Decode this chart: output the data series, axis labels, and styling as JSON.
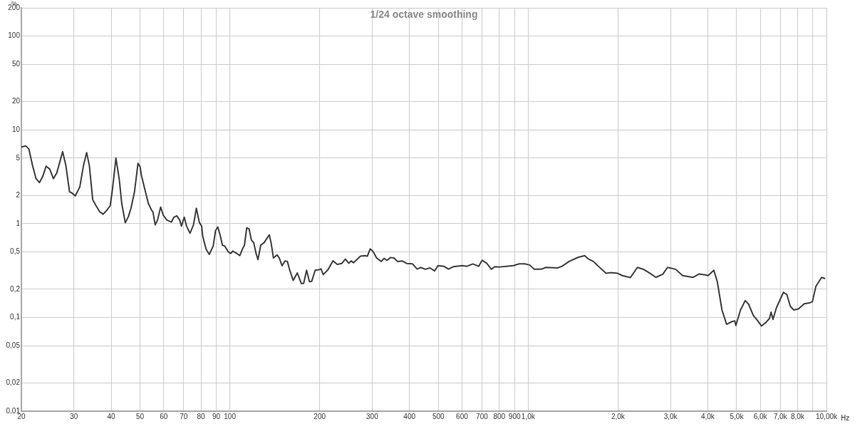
{
  "chart_data": {
    "type": "line",
    "title": "1/24 octave smoothing",
    "xlabel": "Hz",
    "ylabel": "%",
    "log": "xy",
    "grid": true,
    "legend": false,
    "marker": "none",
    "line_style": "solid",
    "color": "#3c3c3c",
    "xlim": [
      20,
      10000
    ],
    "ylim": [
      0.01,
      200
    ],
    "xticks": [
      20,
      30,
      40,
      50,
      60,
      70,
      80,
      90,
      100,
      200,
      300,
      400,
      500,
      600,
      700,
      800,
      900,
      {
        "value": 1000,
        "label": "1,0k"
      },
      {
        "value": 2000,
        "label": "2,0k"
      },
      {
        "value": 3000,
        "label": "3,0k"
      },
      {
        "value": 4000,
        "label": "4,0k"
      },
      {
        "value": 5000,
        "label": "5,0k"
      },
      {
        "value": 6000,
        "label": "6,0k"
      },
      {
        "value": 7000,
        "label": "7,0k"
      },
      {
        "value": 8000,
        "label": "8,0k"
      },
      {
        "value": 9000,
        "label": null
      },
      {
        "value": 10000,
        "label": "10,00k"
      }
    ],
    "yticks": [
      {
        "value": 0.01,
        "label": "0,01"
      },
      {
        "value": 0.02,
        "label": "0,02"
      },
      {
        "value": 0.05,
        "label": "0,05"
      },
      {
        "value": 0.1,
        "label": "0,1"
      },
      {
        "value": 0.2,
        "label": "0,2"
      },
      {
        "value": 0.5,
        "label": "0,5"
      },
      1,
      2,
      5,
      10,
      20,
      50,
      100,
      200
    ],
    "x": [
      20,
      20.7,
      21.2,
      21.8,
      22.4,
      23,
      23.6,
      24.2,
      24.9,
      25.6,
      26.3,
      27.5,
      28.2,
      29,
      29.5,
      30.3,
      31.4,
      32.3,
      33.1,
      33.8,
      34.7,
      35.6,
      36.6,
      37.6,
      38.6,
      39.7,
      40.4,
      41.5,
      42.6,
      43.4,
      44.6,
      45.7,
      46.6,
      47.9,
      49.2,
      50,
      50.5,
      51.4,
      53.3,
      54.7,
      55.2,
      56.2,
      57.2,
      58.6,
      59.8,
      61.5,
      63.7,
      64.9,
      66.4,
      67.9,
      68.8,
      70.3,
      71.6,
      73.5,
      75.5,
      77.2,
      79,
      80.4,
      81.1,
      83.3,
      85.3,
      87.9,
      89.5,
      91.1,
      92.8,
      94.4,
      96.2,
      98.8,
      100.5,
      102.3,
      106.1,
      108,
      110,
      111.9,
      113.9,
      116,
      118.1,
      120.2,
      122.4,
      124.2,
      126.9,
      130.3,
      135.5,
      137.4,
      140,
      143.9,
      146.4,
      149.6,
      153,
      155.9,
      158.6,
      163,
      168.3,
      173.6,
      176.7,
      180.8,
      184.8,
      188.1,
      193.2,
      198.5,
      202.1,
      205.6,
      213.2,
      221.7,
      229,
      237.3,
      243.8,
      250.4,
      254.9,
      259.6,
      273.9,
      283.8,
      288.9,
      295.3,
      302.1,
      310.3,
      321.7,
      328.7,
      336.4,
      345.6,
      354.9,
      364.6,
      377.9,
      391.6,
      409.7,
      424.4,
      436,
      451.9,
      468.4,
      485.3,
      498.6,
      521.5,
      540.3,
      560.2,
      601.7,
      623.5,
      652.2,
      682.2,
      700.9,
      726.1,
      752.3,
      772.8,
      801,
      845.1,
      891.7,
      932.7,
      975,
      1011,
      1048,
      1106,
      1146,
      1253,
      1299,
      1371,
      1472,
      1547,
      1595,
      1654,
      1729,
      1824,
      1891,
      1995,
      2068,
      2201,
      2323,
      2428,
      2563,
      2680,
      2829,
      2931,
      3120,
      3293,
      3568,
      3731,
      3937,
      4009,
      4192,
      4305,
      4463,
      4624,
      4794,
      4924,
      4968,
      5149,
      5339,
      5484,
      5683,
      5838,
      6050,
      6270,
      6441,
      6521,
      6615,
      6796,
      7170,
      7365,
      7566,
      7770,
      8054,
      8422,
      8730,
      8969,
      9210,
      9630,
      9860
    ],
    "values": [
      6.55,
      6.73,
      6.24,
      4.16,
      3.02,
      2.74,
      3.2,
      4.09,
      3.81,
      3.02,
      3.49,
      5.85,
      4.16,
      2.19,
      2.13,
      1.97,
      2.46,
      4.16,
      5.72,
      4.16,
      1.79,
      1.55,
      1.34,
      1.26,
      1.38,
      1.55,
      2.32,
      5,
      2.93,
      1.64,
      1.02,
      1.19,
      1.46,
      2.19,
      4.4,
      4.04,
      3.29,
      2.61,
      1.64,
      1.38,
      1.34,
      0.97,
      1.09,
      1.5,
      1.23,
      1.09,
      1.04,
      1.17,
      1.21,
      1.09,
      0.94,
      1.17,
      0.94,
      0.79,
      0.97,
      1.46,
      1.03,
      0.94,
      0.73,
      0.53,
      0.47,
      0.575,
      0.84,
      0.92,
      0.75,
      0.59,
      0.575,
      0.5,
      0.48,
      0.51,
      0.475,
      0.456,
      0.53,
      0.59,
      0.905,
      0.875,
      0.666,
      0.628,
      0.48,
      0.413,
      0.59,
      0.628,
      0.76,
      0.628,
      0.43,
      0.464,
      0.43,
      0.355,
      0.4,
      0.395,
      0.322,
      0.248,
      0.298,
      0.23,
      0.23,
      0.318,
      0.24,
      0.243,
      0.318,
      0.322,
      0.329,
      0.286,
      0.322,
      0.402,
      0.368,
      0.376,
      0.418,
      0.378,
      0.4,
      0.383,
      0.449,
      0.456,
      0.449,
      0.537,
      0.504,
      0.43,
      0.395,
      0.425,
      0.406,
      0.435,
      0.43,
      0.395,
      0.4,
      0.376,
      0.372,
      0.327,
      0.341,
      0.326,
      0.337,
      0.313,
      0.357,
      0.351,
      0.327,
      0.347,
      0.357,
      0.351,
      0.372,
      0.351,
      0.406,
      0.378,
      0.326,
      0.347,
      0.345,
      0.351,
      0.357,
      0.372,
      0.372,
      0.362,
      0.326,
      0.326,
      0.341,
      0.337,
      0.351,
      0.395,
      0.438,
      0.456,
      0.418,
      0.395,
      0.345,
      0.295,
      0.3,
      0.295,
      0.279,
      0.266,
      0.341,
      0.327,
      0.295,
      0.267,
      0.29,
      0.341,
      0.326,
      0.279,
      0.267,
      0.29,
      0.284,
      0.279,
      0.318,
      0.24,
      0.12,
      0.0845,
      0.0895,
      0.092,
      0.082,
      0.12,
      0.151,
      0.138,
      0.105,
      0.095,
      0.081,
      0.0885,
      0.0977,
      0.114,
      0.095,
      0.127,
      0.185,
      0.175,
      0.131,
      0.12,
      0.123,
      0.14,
      0.142,
      0.147,
      0.214,
      0.267,
      0.26
    ]
  }
}
